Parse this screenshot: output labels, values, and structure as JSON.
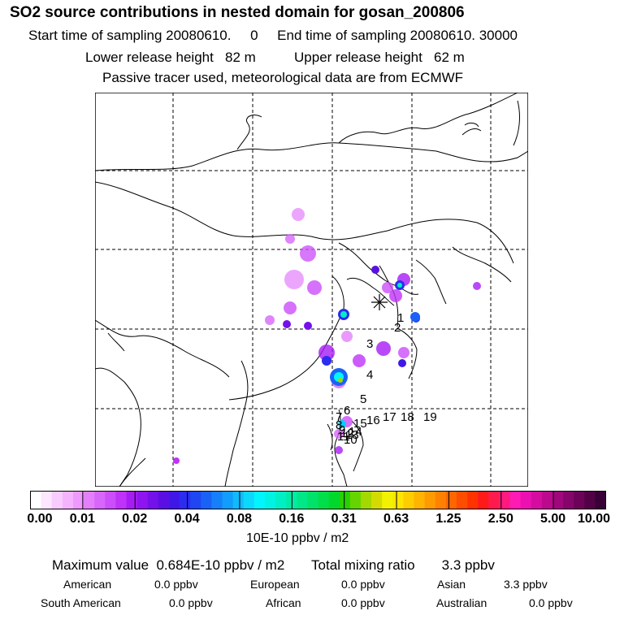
{
  "header": {
    "title": "SO2 source contributions in nested domain for gosan_200806",
    "line_time": "Start time of sampling 20080610.     0     End time of sampling 20080610. 30000",
    "line_height": "Lower release height   82 m          Upper release height   62 m",
    "line_tracer": "Passive tracer used, meteorological data are from ECMWF"
  },
  "map": {
    "receptor_marker": "asterisk-receptor",
    "source_labels": [
      "1",
      "2",
      "3",
      "4",
      "5",
      "6",
      "7",
      "8",
      "9",
      "10",
      "11",
      "12",
      "13",
      "14",
      "15",
      "16",
      "17",
      "18",
      "19"
    ]
  },
  "colorbar": {
    "ticks": [
      "0.00",
      "0.01",
      "0.02",
      "0.04",
      "0.08",
      "0.16",
      "0.31",
      "0.63",
      "1.25",
      "2.50",
      "5.00",
      "10.00"
    ],
    "units": "10E-10 ppbv / m2",
    "colors": [
      "#ffffff",
      "#fde6ff",
      "#f9ccff",
      "#f5b3fe",
      "#ee99fd",
      "#e47ffc",
      "#d866fb",
      "#cc4dfa",
      "#bf33f9",
      "#a81cf4",
      "#8e15ef",
      "#7410ea",
      "#5a10e3",
      "#3f18e8",
      "#2b2cf0",
      "#2046f4",
      "#1a62f7",
      "#167ffa",
      "#129cfb",
      "#0fbafd",
      "#0cd8fe",
      "#00f5ff",
      "#00f2e2",
      "#00efc4",
      "#00eba6",
      "#00e788",
      "#00e269",
      "#00de4a",
      "#00d92c",
      "#28d000",
      "#66d400",
      "#a3d800",
      "#d4db00",
      "#f2f200",
      "#fde500",
      "#fecd00",
      "#feb400",
      "#fe9b00",
      "#fe8200",
      "#fe6600",
      "#fe4c00",
      "#fe3300",
      "#ff1a1a",
      "#ff1a4d",
      "#ff1a80",
      "#ff1ab3",
      "#ec10b0",
      "#d40da0",
      "#bb0a8e",
      "#a0077c",
      "#86056a",
      "#6c0358",
      "#520146",
      "#380036"
    ]
  },
  "summary": {
    "max_line": "Maximum value  0.684E-10 ppbv / m2       Total mixing ratio       3.3 ppbv",
    "american_label": "American",
    "american_value": "0.0 ppbv",
    "european_label": "European",
    "european_value": "0.0 ppbv",
    "asian_label": "Asian",
    "asian_value": "3.3 ppbv",
    "south_american_label": "South American",
    "south_american_value": "0.0 ppbv",
    "african_label": "African",
    "african_value": "0.0 ppbv",
    "australian_label": "Australian",
    "australian_value": "0.0 ppbv"
  }
}
